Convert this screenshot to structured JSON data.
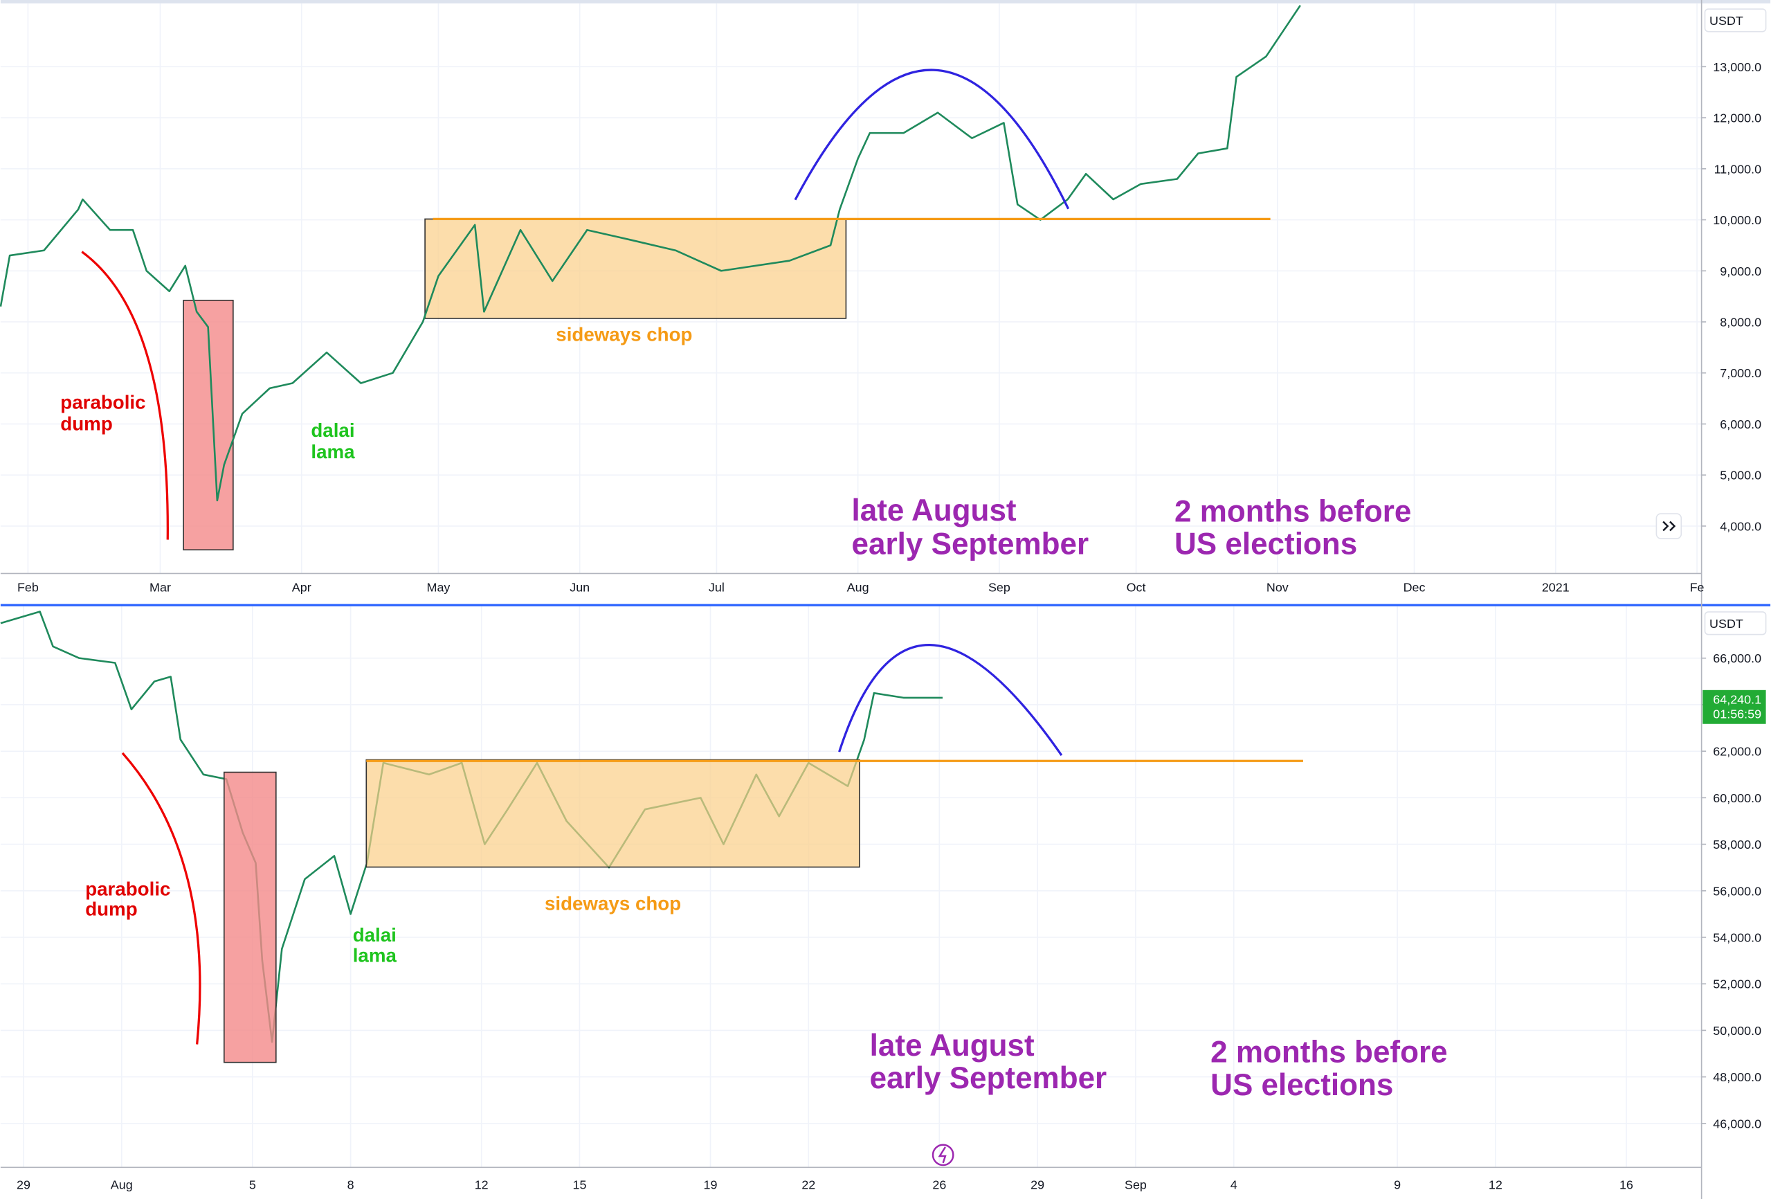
{
  "chart_data": [
    {
      "type": "line",
      "color": "#1f8a5c",
      "currency": "USDT",
      "x": [
        -6,
        -4,
        3.5,
        11,
        12,
        18,
        23,
        26,
        31,
        34.5,
        37,
        39.5,
        41.5,
        43,
        47,
        53,
        58,
        65.5,
        73,
        80,
        86.6,
        90,
        98,
        100,
        108,
        115,
        122.6,
        132.5,
        142,
        152,
        167,
        176,
        178,
        182,
        184.6,
        192,
        199.5,
        207,
        214,
        217,
        222,
        228,
        232,
        238,
        244,
        252,
        256.6,
        263,
        265,
        271.5,
        279
      ],
      "values": [
        8300,
        9300,
        9400,
        10200,
        10400,
        9800,
        9800,
        9000,
        8600,
        9100,
        8200,
        7900,
        4500,
        5200,
        6200,
        6700,
        6800,
        7400,
        6800,
        7000,
        8000,
        8900,
        9900,
        8200,
        9800,
        8800,
        9800,
        9600,
        9400,
        9000,
        9200,
        9500,
        10200,
        11200,
        11700,
        11700,
        12100,
        11600,
        11900,
        10300,
        10000,
        10400,
        10900,
        10400,
        10700,
        10800,
        11300,
        11400,
        12800,
        13200,
        14200
      ],
      "xlim": [
        -6,
        367
      ],
      "ylim": [
        3070,
        14240
      ],
      "xticks": [
        {
          "value": 0,
          "label": "Feb"
        },
        {
          "value": 29,
          "label": "Mar"
        },
        {
          "value": 60,
          "label": "Apr"
        },
        {
          "value": 90,
          "label": "May"
        },
        {
          "value": 121,
          "label": "Jun"
        },
        {
          "value": 151,
          "label": "Jul"
        },
        {
          "value": 182,
          "label": "Aug"
        },
        {
          "value": 213,
          "label": "Sep"
        },
        {
          "value": 243,
          "label": "Oct"
        },
        {
          "value": 274,
          "label": "Nov"
        },
        {
          "value": 304,
          "label": "Dec"
        },
        {
          "value": 335,
          "label": "2021"
        },
        {
          "value": 366,
          "label": "Fe"
        }
      ],
      "yticks": [
        {
          "value": 4000,
          "label": "4,000.0"
        },
        {
          "value": 5000,
          "label": "5,000.0"
        },
        {
          "value": 6000,
          "label": "6,000.0"
        },
        {
          "value": 7000,
          "label": "7,000.0"
        },
        {
          "value": 8000,
          "label": "8,000.0"
        },
        {
          "value": 9000,
          "label": "9,000.0"
        },
        {
          "value": 10000,
          "label": "10,000.0"
        },
        {
          "value": 11000,
          "label": "11,000.0"
        },
        {
          "value": 12000,
          "label": "12,000.0"
        },
        {
          "value": 13000,
          "label": "13,000.0"
        }
      ],
      "grid": true,
      "annotations": {
        "dump": [
          "parabolic",
          "dump"
        ],
        "lama": [
          "dalai",
          "lama"
        ],
        "chop": "sideways chop",
        "season": [
          "late August",
          "early September"
        ],
        "elections": [
          "2 months before",
          "US elections"
        ]
      }
    },
    {
      "type": "line",
      "color": "#1f8a5c",
      "currency": "USDT",
      "x": [
        -0.7,
        0.5,
        0.9,
        1.7,
        2.8,
        3.3,
        4,
        4.5,
        4.8,
        5.5,
        6.2,
        6.7,
        7.1,
        7.3,
        7.6,
        7.9,
        8.6,
        9.5,
        10,
        10.5,
        11,
        12.4,
        13.4,
        14.1,
        14.8,
        15.7,
        16.6,
        17.9,
        19,
        20.7,
        21.4,
        22.4,
        23.1,
        24,
        25.2,
        25.7,
        26,
        26.9,
        28.1
      ],
      "values": [
        67500,
        68000,
        66500,
        66000,
        65800,
        63800,
        65000,
        65200,
        62500,
        61000,
        60800,
        58500,
        57200,
        53000,
        49500,
        53500,
        56500,
        57500,
        55000,
        57200,
        61500,
        61000,
        61500,
        58000,
        59500,
        61500,
        59000,
        57000,
        59500,
        60000,
        58000,
        61000,
        59200,
        61500,
        60500,
        62500,
        64500,
        64300,
        64300
      ],
      "xlim": [
        -0.7,
        51.3
      ],
      "ylim": [
        44110,
        68230
      ],
      "xticks": [
        {
          "value": 0,
          "label": "29"
        },
        {
          "value": 3,
          "label": "Aug"
        },
        {
          "value": 7,
          "label": "5"
        },
        {
          "value": 10,
          "label": "8"
        },
        {
          "value": 14,
          "label": "12"
        },
        {
          "value": 17,
          "label": "15"
        },
        {
          "value": 21,
          "label": "19"
        },
        {
          "value": 24,
          "label": "22"
        },
        {
          "value": 28,
          "label": "26"
        },
        {
          "value": 31,
          "label": "29"
        },
        {
          "value": 34,
          "label": "Sep"
        },
        {
          "value": 37,
          "label": "4"
        },
        {
          "value": 42,
          "label": "9"
        },
        {
          "value": 45,
          "label": "12"
        },
        {
          "value": 49,
          "label": "16"
        }
      ],
      "yticks": [
        {
          "value": 46000,
          "label": "46,000.0"
        },
        {
          "value": 48000,
          "label": "48,000.0"
        },
        {
          "value": 50000,
          "label": "50,000.0"
        },
        {
          "value": 52000,
          "label": "52,000.0"
        },
        {
          "value": 54000,
          "label": "54,000.0"
        },
        {
          "value": 56000,
          "label": "56,000.0"
        },
        {
          "value": 58000,
          "label": "58,000.0"
        },
        {
          "value": 60000,
          "label": "60,000.0"
        },
        {
          "value": 62000,
          "label": "62,000.0"
        },
        {
          "value": 64000,
          "label": "64,000.0"
        },
        {
          "value": 66000,
          "label": "66,000.0"
        }
      ],
      "grid": true,
      "last_price": {
        "value": 64240.1,
        "label": "64,240.1",
        "countdown": "01:56:59"
      },
      "annotations": {
        "dump": [
          "parabolic",
          "dump"
        ],
        "lama": [
          "dalai",
          "lama"
        ],
        "chop": "sideways chop",
        "season": [
          "late August",
          "early September"
        ],
        "elections": [
          "2 months before",
          "US elections"
        ]
      }
    }
  ]
}
